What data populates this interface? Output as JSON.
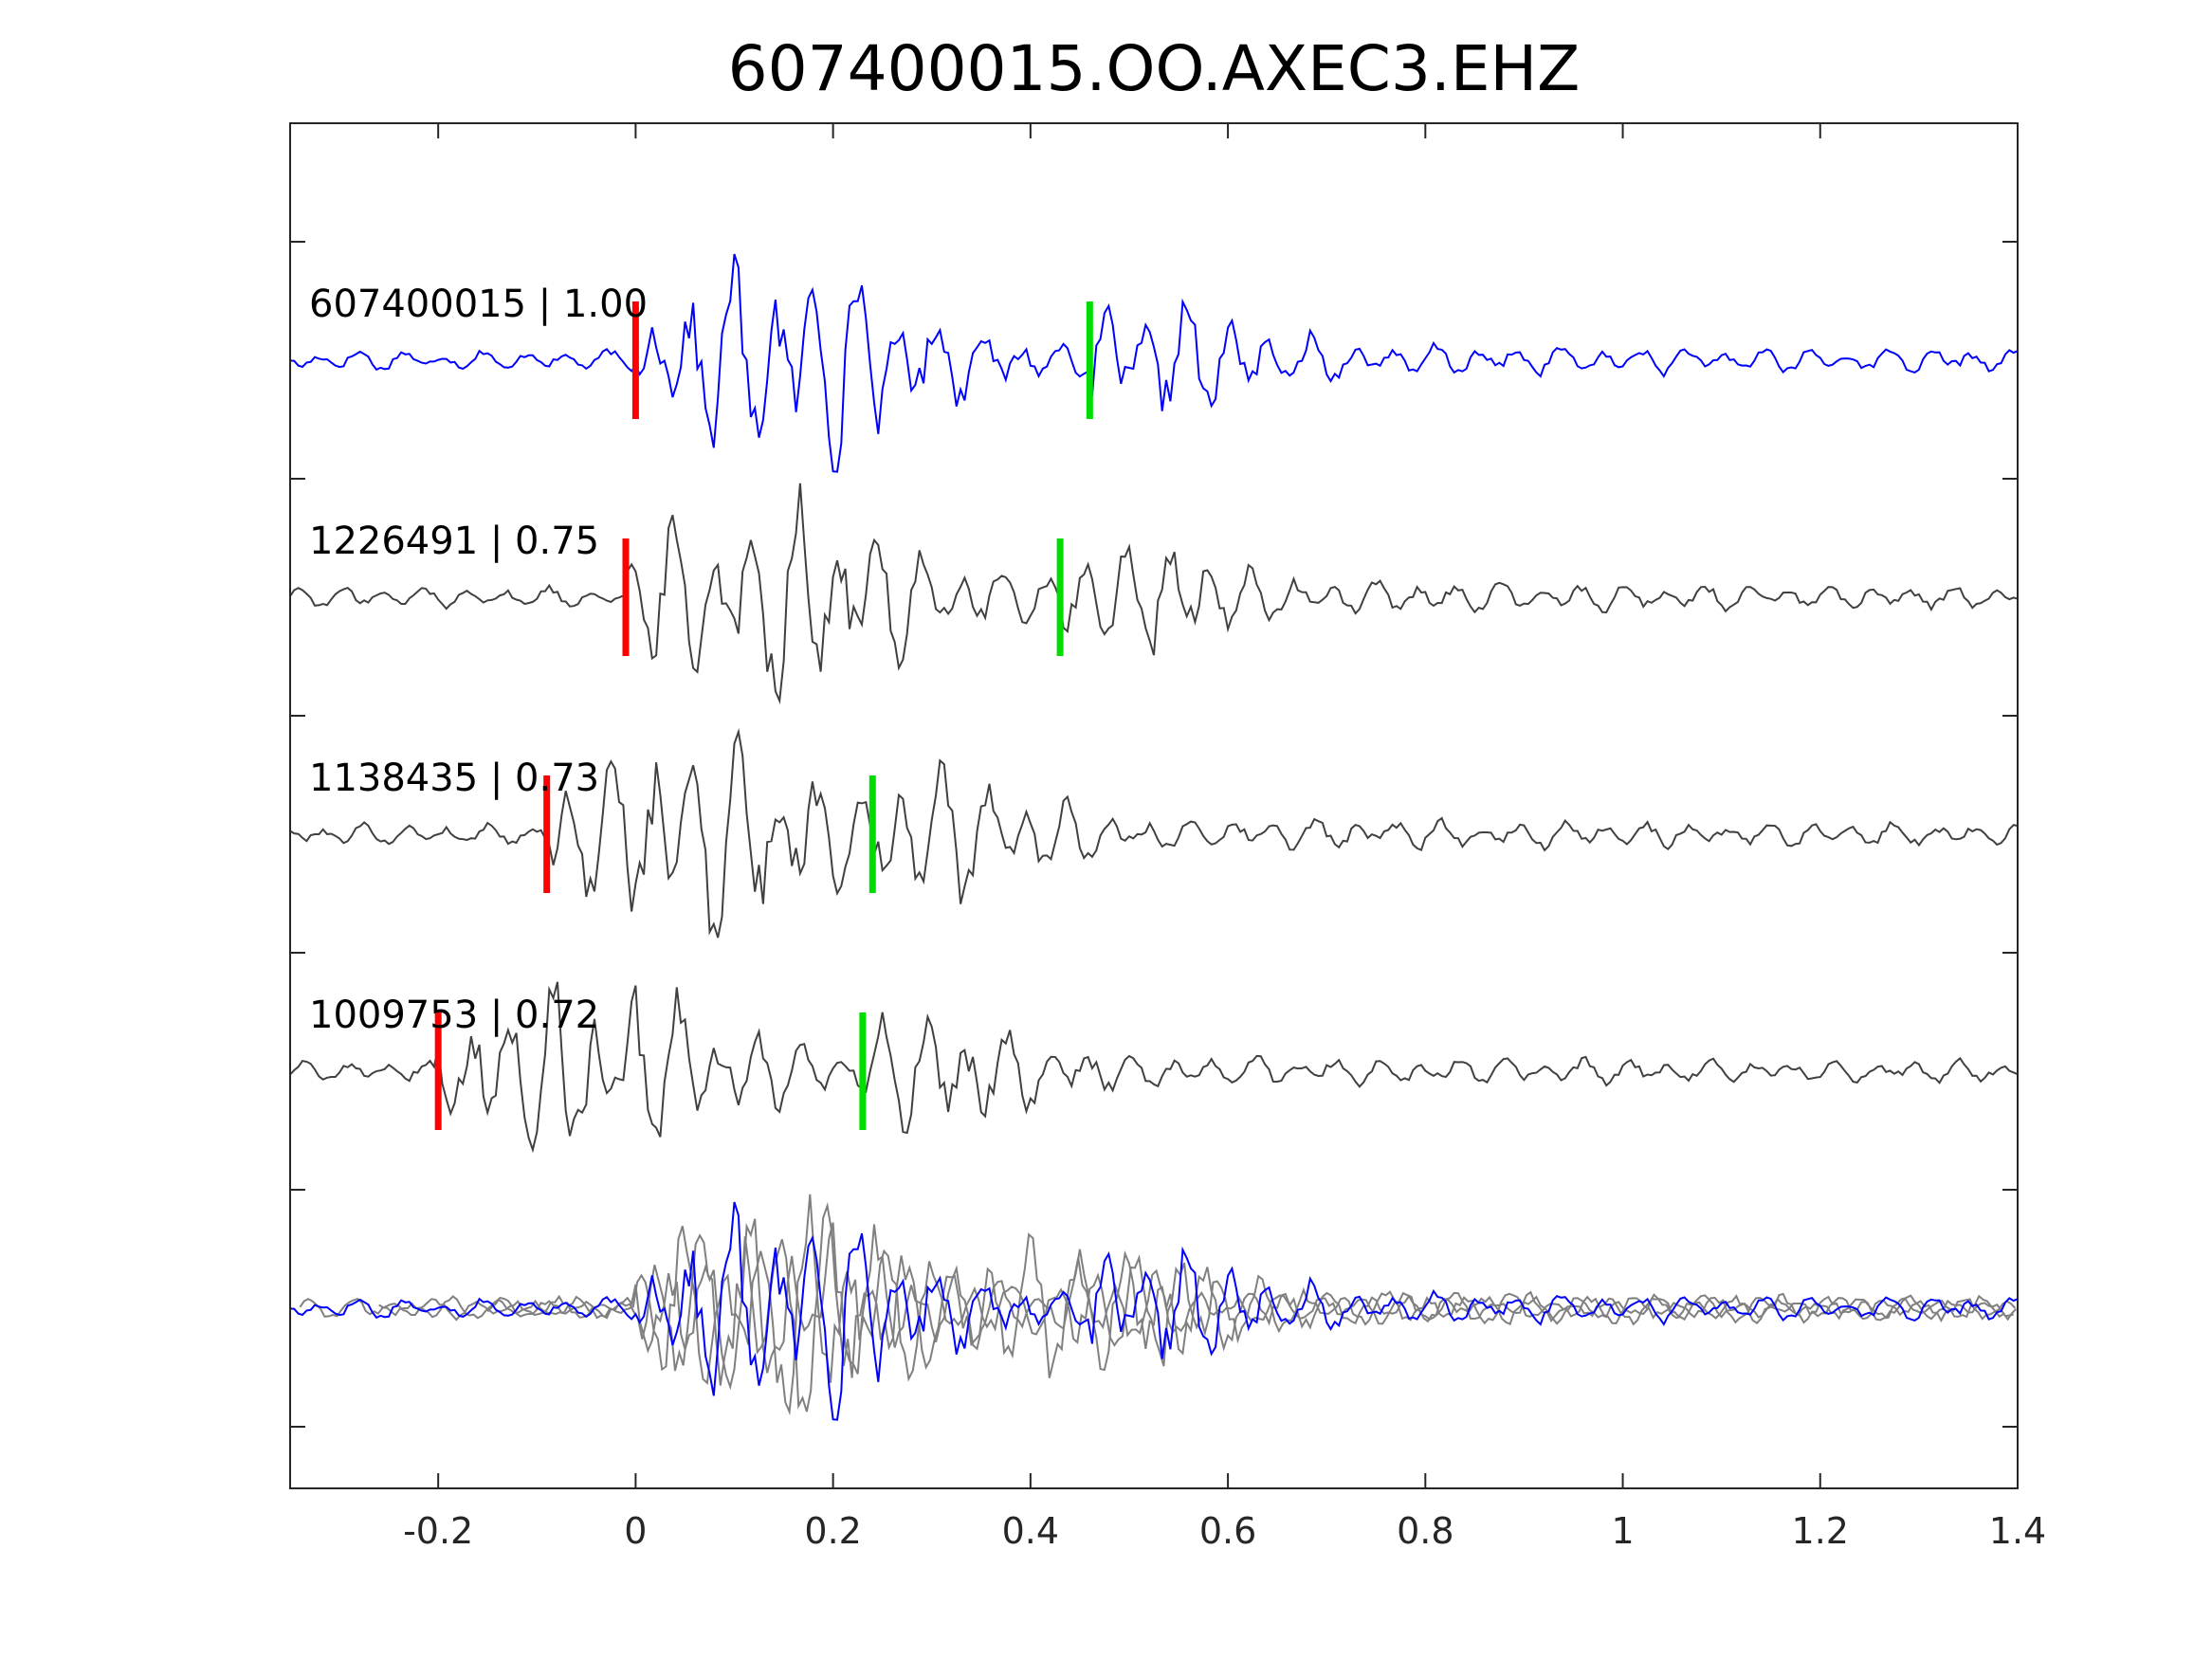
{
  "chart_data": {
    "type": "line",
    "title": "607400015.OO.AXEC3.EHZ",
    "xlabel": "",
    "ylabel": "",
    "xlim": [
      -0.35,
      1.4
    ],
    "x_ticks": [
      -0.2,
      0,
      0.2,
      0.4,
      0.6,
      0.8,
      1,
      1.2,
      1.4
    ],
    "x_tick_labels": [
      "-0.2",
      "0",
      "0.2",
      "0.4",
      "0.6",
      "0.8",
      "1",
      "1.2",
      "1.4"
    ],
    "grid": false,
    "colors": {
      "reference": "#0000ff",
      "match": "#404040",
      "overlay": "#808080",
      "p_pick": "#ff0000",
      "s_pick": "#00dd00",
      "axes": "#262626"
    },
    "traces": [
      {
        "id": "607400015",
        "label": "607400015 | 1.00",
        "cc": 1.0,
        "p_pick": 0.0,
        "s_pick": 0.46,
        "color": "reference"
      },
      {
        "id": "1226491",
        "label": "1226491 | 0.75",
        "cc": 0.75,
        "p_pick": -0.01,
        "s_pick": 0.43,
        "color": "match"
      },
      {
        "id": "1138435",
        "label": "1138435 | 0.73",
        "cc": 0.73,
        "p_pick": -0.09,
        "s_pick": 0.24,
        "color": "match"
      },
      {
        "id": "1009753",
        "label": "1009753 | 0.72",
        "cc": 0.72,
        "p_pick": -0.2,
        "s_pick": 0.23,
        "color": "match"
      }
    ],
    "overlay": "all traces aligned on the reference (bottom)"
  }
}
